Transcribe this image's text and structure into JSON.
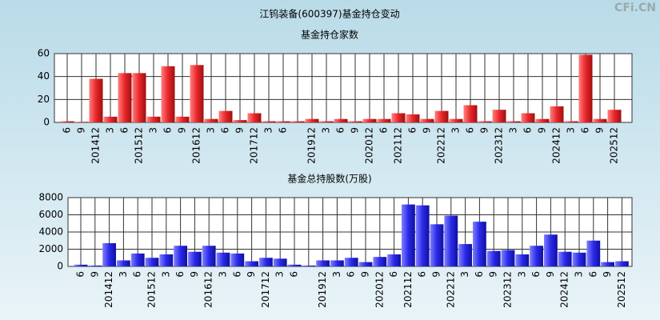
{
  "title": "江钨装备(600397)基金持仓变动",
  "watermark": "CFi.CN",
  "chart_data": [
    {
      "type": "bar",
      "title": "基金持仓家数",
      "color": "#e8262a",
      "categories": [
        "6",
        "9",
        "201412",
        "3",
        "6",
        "201512",
        "3",
        "6",
        "9",
        "201612",
        "3",
        "6",
        "9",
        "201712",
        "3",
        "6",
        null,
        "201912",
        "3",
        "6",
        "9",
        "202012",
        "6",
        "202112",
        "6",
        "9",
        "202212",
        "3",
        "6",
        "9",
        "202312",
        "3",
        "6",
        "9",
        "202412",
        "3",
        "6",
        "9",
        "202512"
      ],
      "values": [
        1,
        0.5,
        38,
        5,
        43,
        43,
        5,
        49,
        5,
        50,
        3,
        10,
        2,
        8,
        1,
        1,
        1,
        3,
        1,
        3,
        1,
        3,
        3,
        8,
        7,
        3,
        10,
        3,
        15,
        1,
        11,
        1,
        8,
        3,
        14,
        1,
        59,
        3,
        11
      ],
      "ylim": [
        0,
        60
      ],
      "yticks": [
        0,
        20,
        40,
        60
      ],
      "grid": true
    },
    {
      "type": "bar",
      "title": "基金总持股数(万股)",
      "color": "#2a2ae8",
      "categories": [
        "6",
        "9",
        "201412",
        "3",
        "6",
        "201512",
        "3",
        "6",
        "9",
        "201612",
        "3",
        "6",
        "9",
        "201712",
        "3",
        "6",
        null,
        "201912",
        "3",
        "6",
        "9",
        "202012",
        "6",
        "202112",
        "6",
        "9",
        "202212",
        "3",
        "6",
        "9",
        "202312",
        "3",
        "6",
        "9",
        "202412",
        "3",
        "6",
        "9",
        "202512"
      ],
      "values": [
        200,
        100,
        2700,
        700,
        1500,
        1000,
        1400,
        2400,
        1700,
        2400,
        1600,
        1500,
        600,
        1000,
        900,
        200,
        100,
        700,
        700,
        1000,
        500,
        1100,
        1400,
        7200,
        7100,
        4900,
        5900,
        2600,
        5200,
        1800,
        1900,
        1400,
        2400,
        3700,
        1700,
        1600,
        3000,
        500,
        600
      ],
      "ylim": [
        0,
        8000
      ],
      "yticks": [
        0,
        2000,
        4000,
        6000,
        8000
      ],
      "grid": true
    }
  ]
}
